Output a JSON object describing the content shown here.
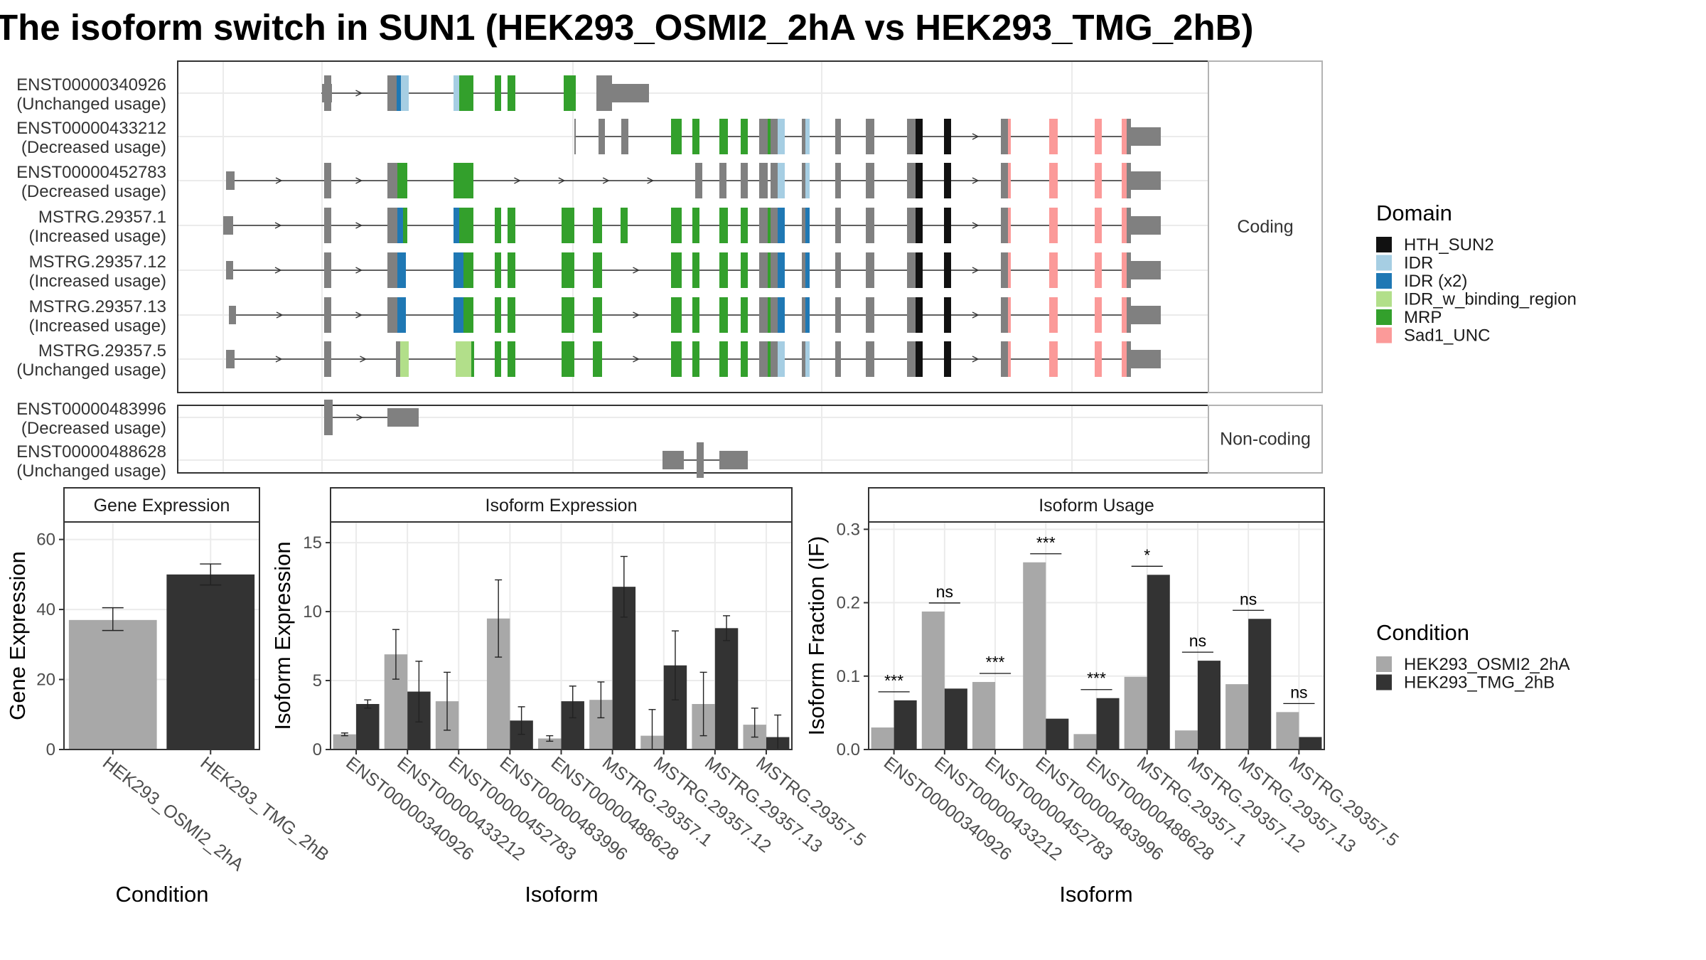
{
  "title": "The isoform switch in SUN1 (HEK293_OSMI2_2hA vs HEK293_TMG_2hB)",
  "colors": {
    "condition_a": "#a8a8a8",
    "condition_b": "#333333",
    "exon": "#808080",
    "intron": "#333333",
    "panel_border": "#333333",
    "strip_fill": "#ffffff",
    "grid": "#ebebeb"
  },
  "structure": {
    "coding_strip": "Coding",
    "noncoding_strip": "Non-coding",
    "coding_transcripts": [
      {
        "id": "ENST00000340926",
        "usage": "(Unchanged usage)"
      },
      {
        "id": "ENST00000433212",
        "usage": "(Decreased usage)"
      },
      {
        "id": "ENST00000452783",
        "usage": "(Decreased usage)"
      },
      {
        "id": "MSTRG.29357.1",
        "usage": "(Increased usage)"
      },
      {
        "id": "MSTRG.29357.12",
        "usage": "(Increased usage)"
      },
      {
        "id": "MSTRG.29357.13",
        "usage": "(Increased usage)"
      },
      {
        "id": "MSTRG.29357.5",
        "usage": "(Unchanged usage)"
      }
    ],
    "noncoding_transcripts": [
      {
        "id": "ENST00000483996",
        "usage": "(Decreased usage)"
      },
      {
        "id": "ENST00000488628",
        "usage": "(Unchanged usage)"
      }
    ]
  },
  "domain_legend": {
    "title": "Domain",
    "items": [
      {
        "label": "HTH_SUN2",
        "color": "#111111"
      },
      {
        "label": "IDR",
        "color": "#a6cee3"
      },
      {
        "label": "IDR (x2)",
        "color": "#1f78b4"
      },
      {
        "label": "IDR_w_binding_region",
        "color": "#b2df8a"
      },
      {
        "label": "MRP",
        "color": "#33a02c"
      },
      {
        "label": "Sad1_UNC",
        "color": "#fb9a99"
      }
    ]
  },
  "condition_legend": {
    "title": "Condition",
    "items": [
      {
        "label": "HEK293_OSMI2_2hA",
        "color": "#a8a8a8"
      },
      {
        "label": "HEK293_TMG_2hB",
        "color": "#333333"
      }
    ]
  },
  "chart_data": [
    {
      "type": "bar",
      "title": "Gene Expression",
      "xlabel": "Condition",
      "ylabel": "Gene Expression",
      "ylim": [
        0,
        65
      ],
      "yticks": [
        0,
        20,
        40,
        60
      ],
      "categories": [
        "HEK293_OSMI2_2hA",
        "HEK293_TMG_2hB"
      ],
      "values": [
        37,
        50
      ],
      "errors": [
        [
          34,
          40.5
        ],
        [
          47,
          53
        ]
      ]
    },
    {
      "type": "bar",
      "title": "Isoform Expression",
      "xlabel": "Isoform",
      "ylabel": "Isoform Expression",
      "ylim": [
        0,
        16.5
      ],
      "yticks": [
        0,
        5,
        10,
        15
      ],
      "categories": [
        "ENST00000340926",
        "ENST00000433212",
        "ENST00000452783",
        "ENST00000483996",
        "ENST00000488628",
        "MSTRG.29357.1",
        "MSTRG.29357.12",
        "MSTRG.29357.13",
        "MSTRG.29357.5"
      ],
      "series": [
        {
          "name": "HEK293_OSMI2_2hA",
          "values": [
            1.1,
            6.9,
            3.5,
            9.5,
            0.8,
            3.6,
            1.0,
            3.3,
            1.8
          ],
          "errors": [
            [
              1.0,
              1.2
            ],
            [
              5.1,
              8.7
            ],
            [
              1.4,
              5.6
            ],
            [
              6.7,
              12.3
            ],
            [
              0.6,
              1.0
            ],
            [
              2.3,
              4.9
            ],
            [
              0.0,
              2.9
            ],
            [
              1.0,
              5.6
            ],
            [
              0.9,
              3.0
            ]
          ]
        },
        {
          "name": "HEK293_TMG_2hB",
          "values": [
            3.3,
            4.2,
            0.0,
            2.1,
            3.5,
            11.8,
            6.1,
            8.8,
            0.9
          ],
          "errors": [
            [
              3.0,
              3.6
            ],
            [
              2.0,
              6.4
            ],
            [
              0.0,
              0.0
            ],
            [
              1.1,
              3.1
            ],
            [
              2.3,
              4.6
            ],
            [
              9.6,
              14.0
            ],
            [
              3.6,
              8.6
            ],
            [
              7.9,
              9.7
            ],
            [
              0.0,
              2.5
            ]
          ]
        }
      ]
    },
    {
      "type": "bar",
      "title": "Isoform Usage",
      "xlabel": "Isoform",
      "ylabel": "Isoform Fraction (IF)",
      "ylim": [
        0,
        0.31
      ],
      "yticks": [
        0.0,
        0.1,
        0.2,
        0.3
      ],
      "ytick_labels": [
        "0.0",
        "0.1",
        "0.2",
        "0.3"
      ],
      "categories": [
        "ENST00000340926",
        "ENST00000433212",
        "ENST00000452783",
        "ENST00000483996",
        "ENST00000488628",
        "MSTRG.29357.1",
        "MSTRG.29357.12",
        "MSTRG.29357.13",
        "MSTRG.29357.5"
      ],
      "series": [
        {
          "name": "HEK293_OSMI2_2hA",
          "values": [
            0.03,
            0.188,
            0.092,
            0.255,
            0.021,
            0.099,
            0.026,
            0.089,
            0.051
          ]
        },
        {
          "name": "HEK293_TMG_2hB",
          "values": [
            0.067,
            0.083,
            0.0,
            0.042,
            0.07,
            0.238,
            0.121,
            0.178,
            0.017
          ]
        }
      ],
      "significance": [
        "***",
        "ns",
        "***",
        "***",
        "***",
        "*",
        "ns",
        "ns",
        "ns"
      ]
    }
  ]
}
